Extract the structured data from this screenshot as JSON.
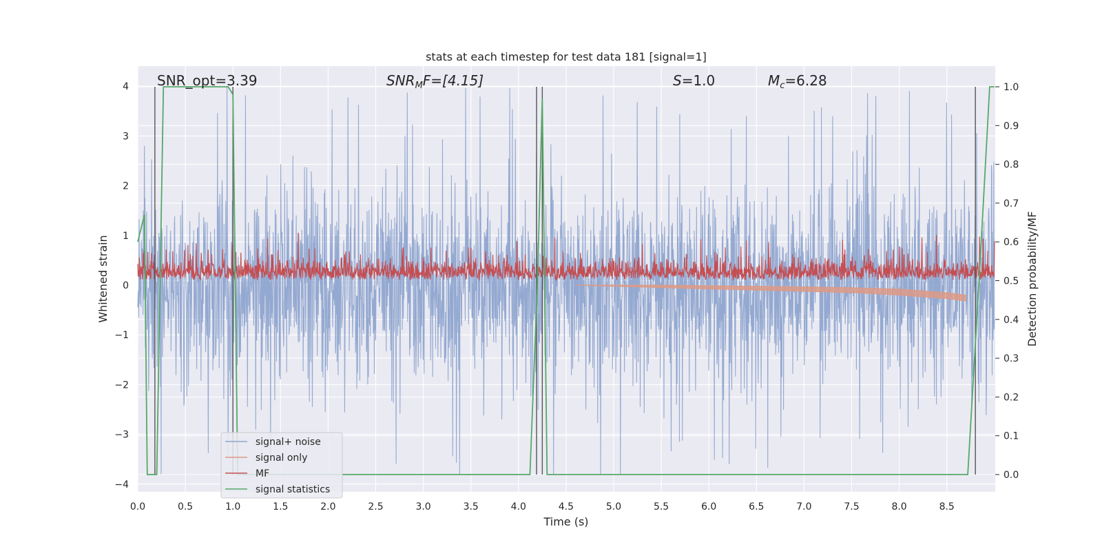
{
  "chart_data": {
    "type": "line",
    "title": "stats at each timestep for test data 181 [signal=1]",
    "xlabel": "Time (s)",
    "ylabel": "Whitened strain",
    "y2label": "Detection probability/MF",
    "xlim": [
      0.0,
      9.0
    ],
    "ylim": [
      -4.2,
      4.35
    ],
    "y2lim": [
      -0.047,
      1.045
    ],
    "xticks": [
      "0.0",
      "0.5",
      "1.0",
      "1.5",
      "2.0",
      "2.5",
      "3.0",
      "3.5",
      "4.0",
      "4.5",
      "5.0",
      "5.5",
      "6.0",
      "6.5",
      "7.0",
      "7.5",
      "8.0",
      "8.5"
    ],
    "yticks": [
      "4",
      "3",
      "2",
      "1",
      "0",
      "−1",
      "−2",
      "−3",
      "−4"
    ],
    "y2ticks": [
      "1.0",
      "0.9",
      "0.8",
      "0.7",
      "0.6",
      "0.5",
      "0.4",
      "0.3",
      "0.2",
      "0.1",
      "0.0"
    ],
    "grid": true,
    "legend_position": "lower-left",
    "annotations": {
      "snr_opt": "SNR_opt=3.39",
      "snr_mf_base": "SNR",
      "snr_mf_sub": "M",
      "snr_mf_rest": "F=[4.15]",
      "s_var": "S",
      "s_rest": "=1.0",
      "mc_var": "M",
      "mc_sub": "c",
      "mc_rest": "=6.28"
    },
    "series": [
      {
        "name": "signal+ noise",
        "color": "#8fa5cf",
        "noise_band": {
          "low": [
            -2.4,
            -3.8
          ],
          "high": [
            1.8,
            4.0
          ]
        }
      },
      {
        "name": "signal only",
        "color": "#dd9a86",
        "x": [
          4.6,
          5.5,
          6.5,
          7.5,
          8.0,
          8.5,
          8.7
        ],
        "y_upper": [
          0.0,
          0.0,
          -0.02,
          -0.05,
          -0.08,
          -0.15,
          -0.2
        ],
        "y_lower": [
          0.0,
          -0.05,
          -0.1,
          -0.15,
          -0.2,
          -0.27,
          -0.32
        ]
      },
      {
        "name": "MF",
        "color": "#c44e52",
        "y2_band": [
          0.5,
          0.58
        ]
      },
      {
        "name": "signal statistics",
        "color": "#55a868",
        "x": [
          0.0,
          0.07,
          0.1,
          0.2,
          0.27,
          0.95,
          1.0,
          1.05,
          4.12,
          4.2,
          4.25,
          4.3,
          8.72,
          8.85,
          8.95,
          9.0
        ],
        "y": [
          0.6,
          0.67,
          0.0,
          0.0,
          1.0,
          1.0,
          0.98,
          0.0,
          0.0,
          0.5,
          0.97,
          0.0,
          0.0,
          0.55,
          1.0,
          1.0
        ]
      }
    ],
    "vertical_lines": [
      0.18,
      1.0,
      4.19,
      4.25,
      8.8
    ]
  }
}
